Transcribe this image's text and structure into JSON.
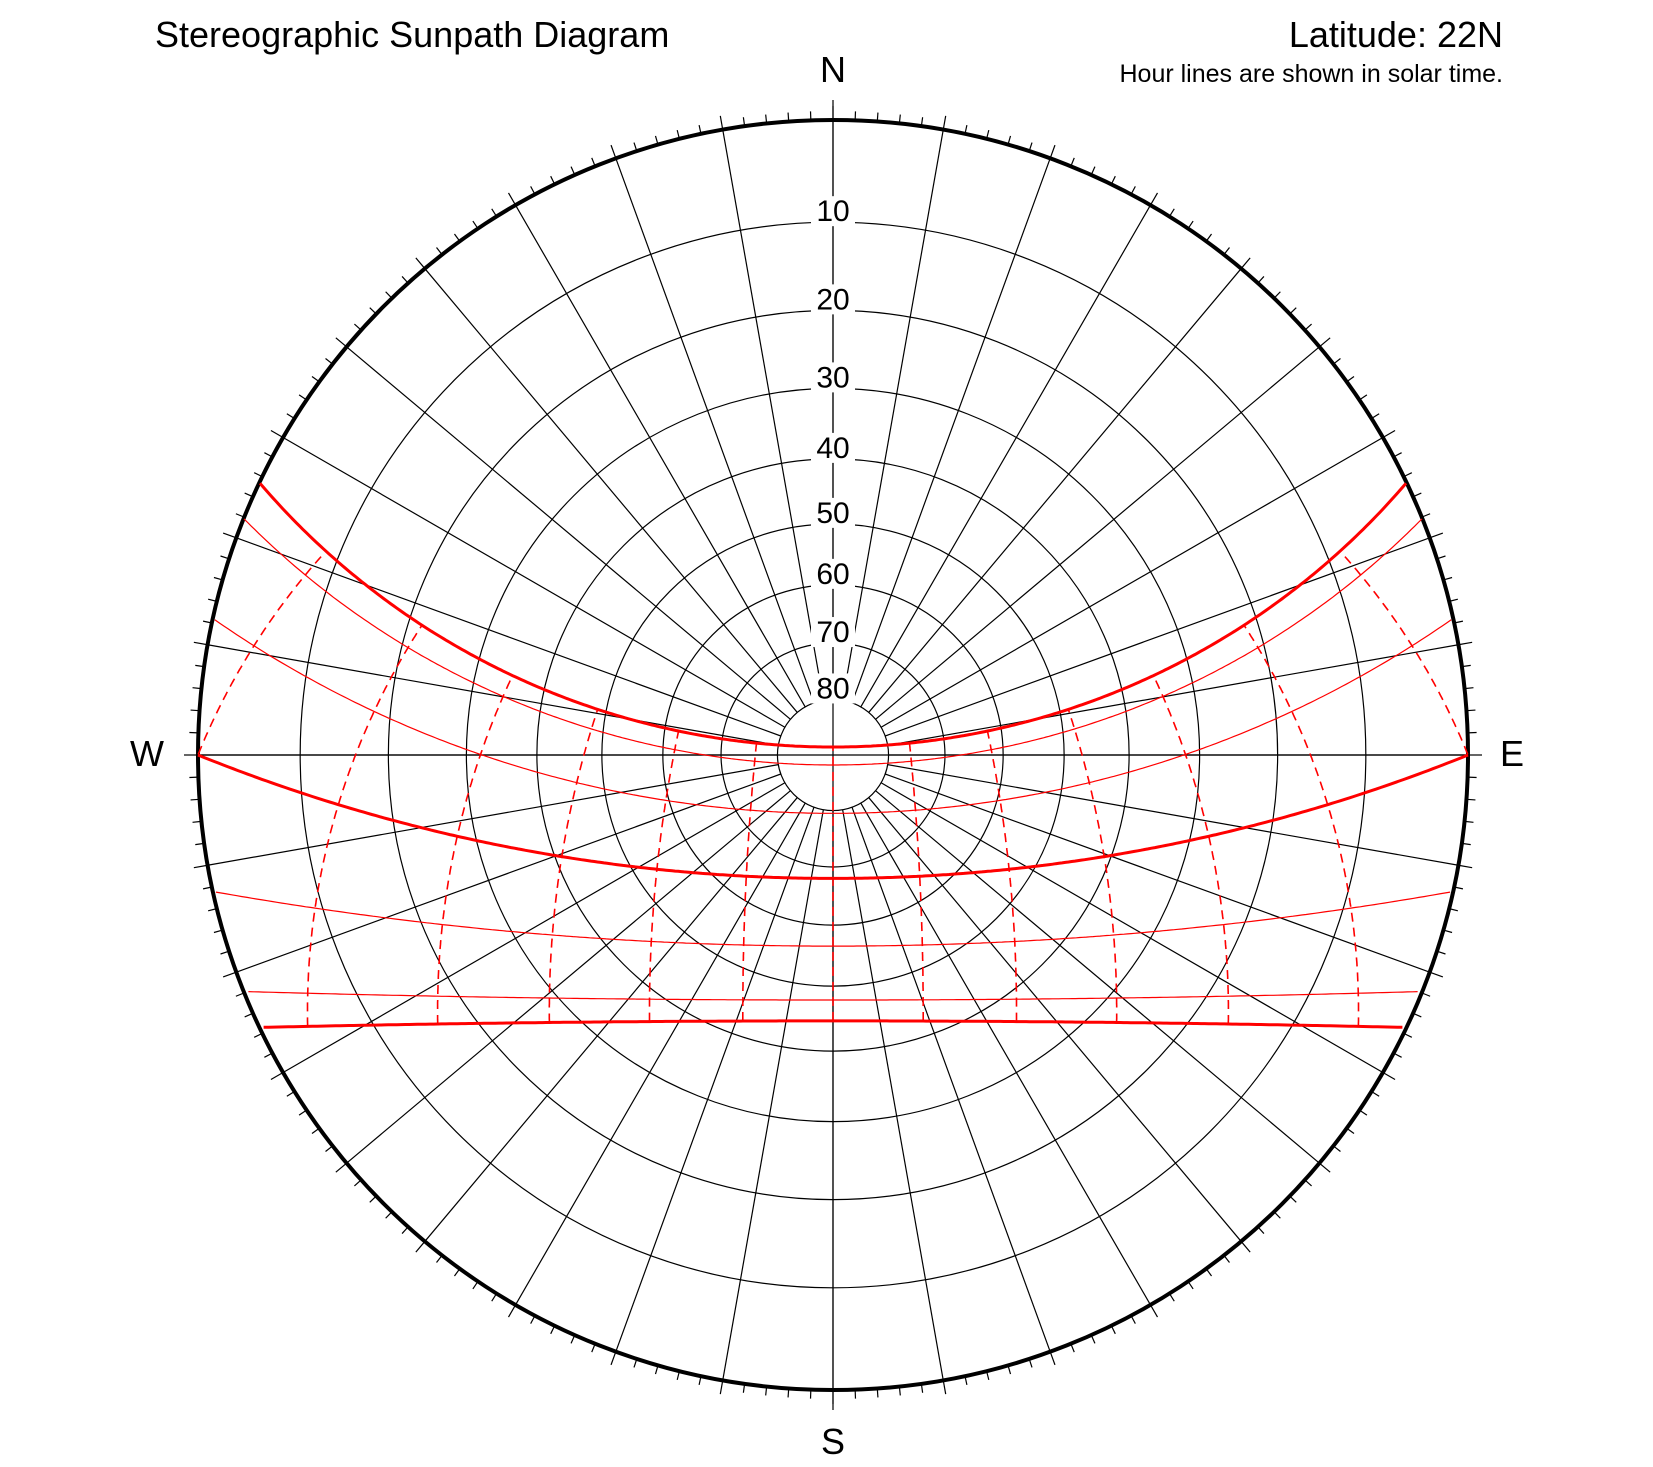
{
  "header": {
    "title": "Stereographic Sunpath Diagram",
    "latitude_label": "Latitude: 22N",
    "note": "Hour lines are shown in solar time."
  },
  "cardinals": {
    "north": "N",
    "south": "S",
    "east": "E",
    "west": "W"
  },
  "altitude_rings": [
    "10",
    "20",
    "30",
    "40",
    "50",
    "60",
    "70",
    "80"
  ],
  "colors": {
    "grid": "#000000",
    "sunpath": "#ff0000",
    "background": "#ffffff"
  },
  "chart_data": {
    "type": "stereographic-sunpath",
    "latitude_deg": 22,
    "altitude_ring_values": [
      10,
      20,
      30,
      40,
      50,
      60,
      70,
      80
    ],
    "azimuth_line_step_deg": 10,
    "tick_step_deg": 2,
    "declinations_deg": [
      23.44,
      20.2,
      11.5,
      0,
      -11.5,
      -20.2,
      -23.44
    ],
    "hour_lines_solar": [
      6,
      7,
      8,
      9,
      10,
      11,
      12,
      13,
      14,
      15,
      16,
      17,
      18
    ]
  }
}
